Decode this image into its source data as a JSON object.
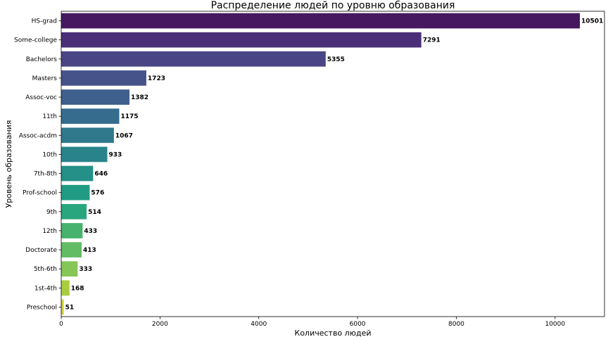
{
  "chart_data": {
    "type": "bar",
    "orientation": "horizontal",
    "title": "Распределение людей по уровню образования",
    "xlabel": "Количество людей",
    "ylabel": "Уровень образования",
    "xlim": [
      0,
      11000
    ],
    "xticks": [
      0,
      2000,
      4000,
      6000,
      8000,
      10000
    ],
    "grid": false,
    "categories": [
      "HS-grad",
      "Some-college",
      "Bachelors",
      "Masters",
      "Assoc-voc",
      "11th",
      "Assoc-acdm",
      "10th",
      "7th-8th",
      "Prof-school",
      "9th",
      "12th",
      "Doctorate",
      "5th-6th",
      "1st-4th",
      "Preschool"
    ],
    "values": [
      10501,
      7291,
      5355,
      1723,
      1382,
      1175,
      1067,
      933,
      646,
      576,
      514,
      433,
      413,
      333,
      168,
      51
    ],
    "colors": [
      "#45185f",
      "#4a2f78",
      "#4a4584",
      "#46538a",
      "#3f608c",
      "#366d8e",
      "#30788c",
      "#29838b",
      "#249087",
      "#219b84",
      "#29a67d",
      "#47b26e",
      "#62bc64",
      "#86c657",
      "#a9cd40",
      "#cfd338"
    ]
  }
}
